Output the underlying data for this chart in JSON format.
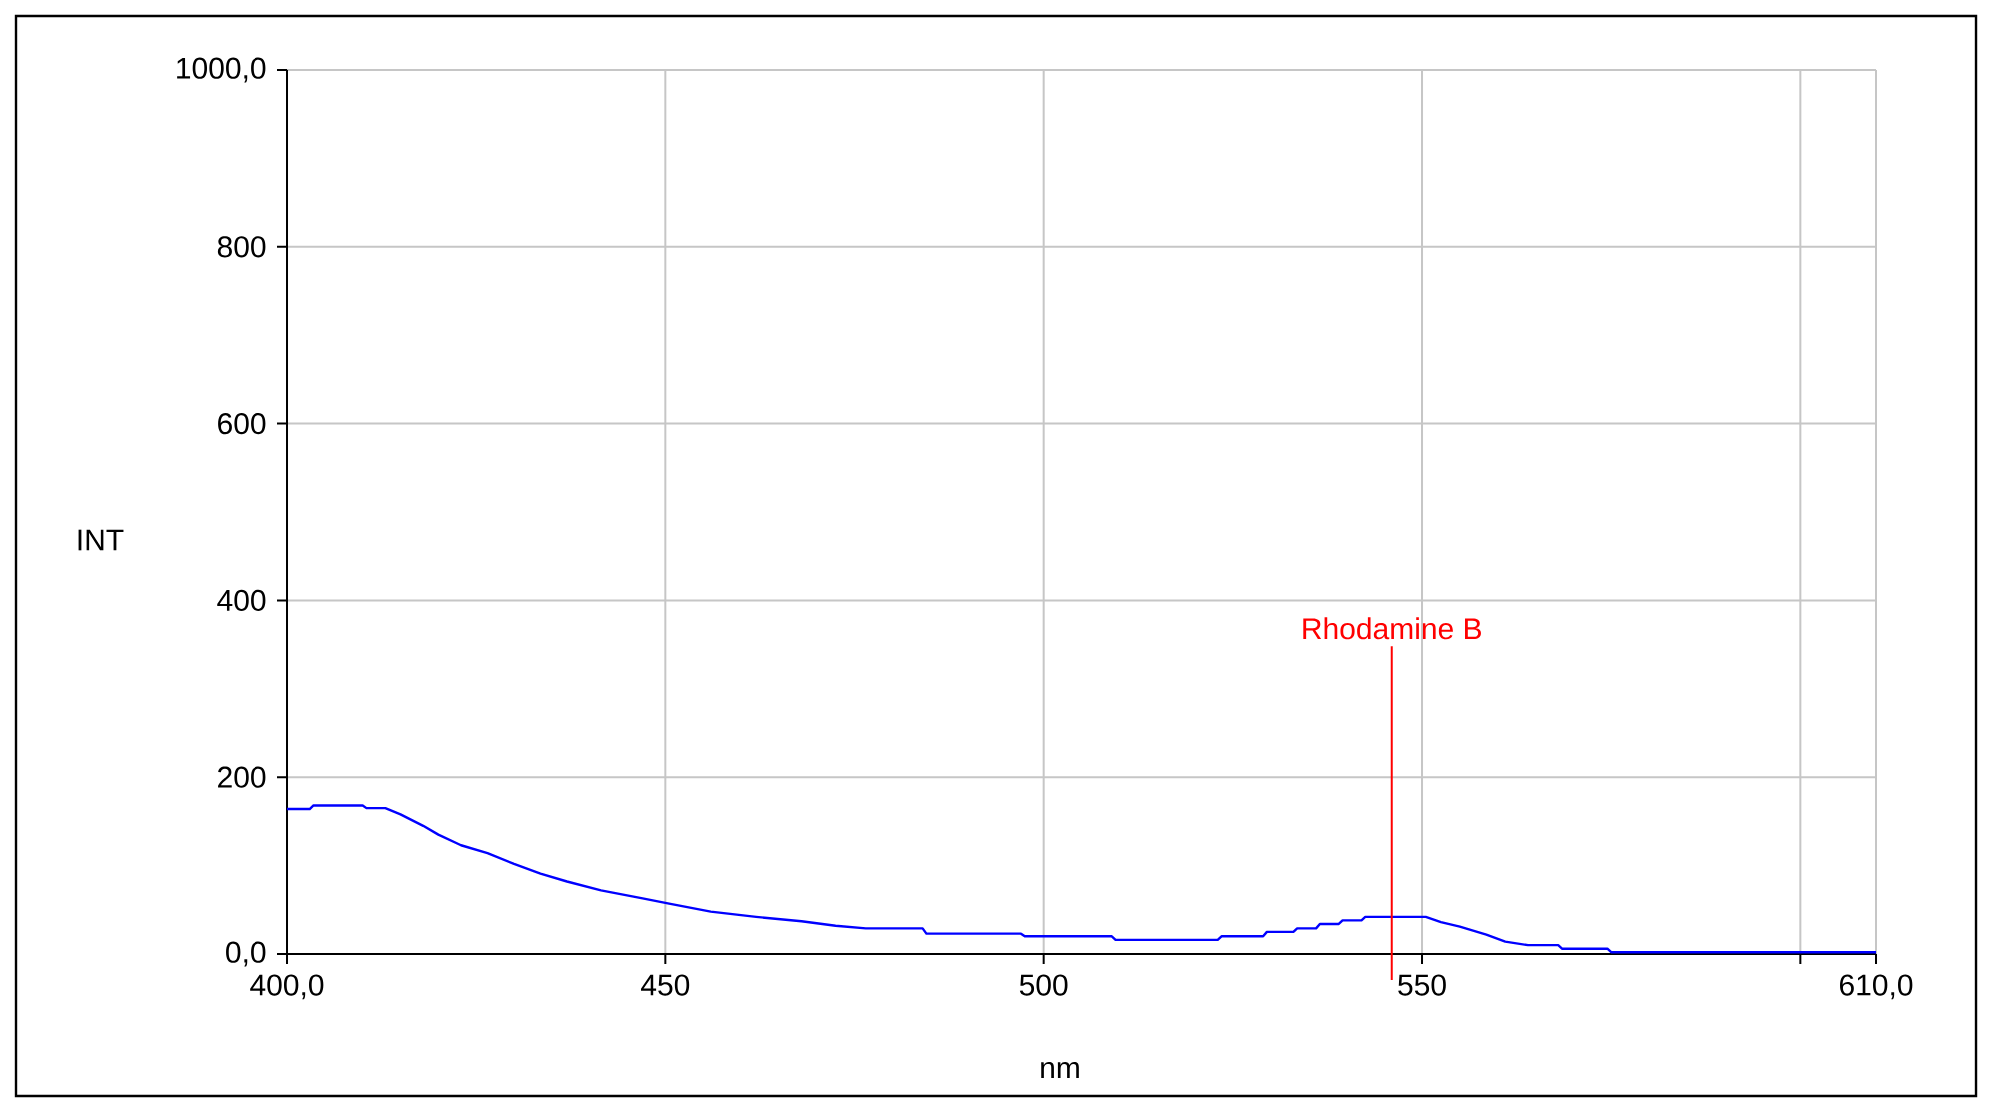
{
  "chart_data": {
    "type": "line",
    "xlabel": "nm",
    "ylabel": "INT",
    "xlim": [
      400,
      610
    ],
    "ylim": [
      0,
      1000
    ],
    "xticks": [
      {
        "value": 400,
        "label": "400,0"
      },
      450,
      500,
      550,
      {
        "value": 600,
        "label": null
      },
      {
        "value": 610,
        "label": "610,0"
      }
    ],
    "yticks": [
      {
        "value": 0,
        "label": "0,0"
      },
      200,
      400,
      600,
      800,
      {
        "value": 1000,
        "label": "1000,0"
      }
    ],
    "grid": true,
    "marker": "none",
    "line_style": "solid",
    "series": [
      {
        "color": "#0000ff",
        "x": [
          400,
          403,
          403.5,
          410,
          410.5,
          413,
          415,
          418,
          420,
          423,
          426.5,
          430,
          433.5,
          437,
          441.5,
          447,
          450.5,
          456,
          462,
          468,
          472.5,
          476.5,
          484,
          484.5,
          497,
          497.5,
          509,
          509.5,
          523,
          523.5,
          529,
          529.5,
          533,
          533.5,
          536,
          536.5,
          539,
          539.5,
          542,
          542.5,
          550.5,
          552.5,
          555,
          558.5,
          561,
          564,
          568,
          568.5,
          574.5,
          575,
          610
        ],
        "values": [
          164,
          164,
          168,
          168,
          165,
          165,
          158,
          145,
          135,
          123,
          114,
          102,
          91,
          82,
          72,
          63,
          57,
          48,
          42,
          37,
          32,
          29,
          29,
          23,
          23,
          20,
          20,
          16,
          16,
          20,
          20,
          25,
          25,
          29,
          29,
          34,
          34,
          38,
          38,
          42,
          42,
          36,
          31,
          22,
          14,
          10,
          10,
          6,
          6,
          2,
          2
        ]
      }
    ],
    "ref_lines": [
      {
        "axis": "x",
        "value": 546,
        "label": "Rhodamine B",
        "color": "#ff0000"
      }
    ]
  }
}
